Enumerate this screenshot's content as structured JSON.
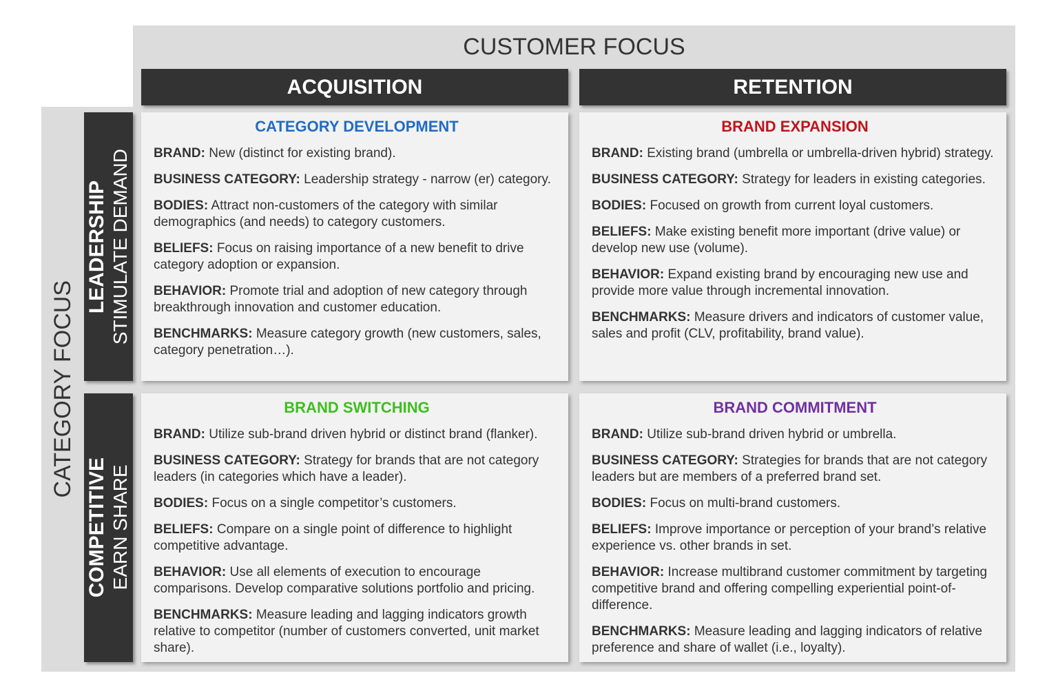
{
  "header": {
    "title": "CUSTOMER FOCUS"
  },
  "columns": [
    "ACQUISITION",
    "RETENTION"
  ],
  "side": {
    "title": "CATEGORY FOCUS"
  },
  "rows": [
    {
      "title": "LEADERSHIP",
      "subtitle": "STIMULATE DEMAND"
    },
    {
      "title": "COMPETITIVE",
      "subtitle": "EARN SHARE"
    }
  ],
  "cells": [
    [
      {
        "title": "CATEGORY DEVELOPMENT",
        "color": "#1f6cc4",
        "items": [
          {
            "label": "BRAND:",
            "text": "New (distinct for existing brand)."
          },
          {
            "label": "BUSINESS CATEGORY:",
            "text": "Leadership strategy - narrow (er) category."
          },
          {
            "label": "BODIES:",
            "text": "Attract non-customers of the category with similar demographics (and needs) to category customers."
          },
          {
            "label": "BELIEFS:",
            "text": "Focus on raising importance of a new benefit to drive category adoption or expansion."
          },
          {
            "label": "BEHAVIOR:",
            "text": "Promote trial and adoption of new category through breakthrough innovation and customer education."
          },
          {
            "label": "BENCHMARKS:",
            "text": "Measure category growth (new customers, sales, category penetration…)."
          }
        ]
      },
      {
        "title": "BRAND EXPANSION",
        "color": "#c0141c",
        "items": [
          {
            "label": "BRAND:",
            "text": "Existing brand (umbrella or umbrella-driven hybrid) strategy."
          },
          {
            "label": "BUSINESS CATEGORY:",
            "text": "Strategy for leaders in existing categories."
          },
          {
            "label": "BODIES:",
            "text": "Focused on growth from current loyal customers."
          },
          {
            "label": "BELIEFS:",
            "text": "Make existing benefit more important (drive value) or develop new use (volume)."
          },
          {
            "label": "BEHAVIOR:",
            "text": "Expand existing brand by encouraging new use and provide more value through incremental innovation."
          },
          {
            "label": "BENCHMARKS:",
            "text": "Measure drivers and indicators of customer value, sales and profit (CLV, profitability, brand value)."
          }
        ]
      }
    ],
    [
      {
        "title": "BRAND SWITCHING",
        "color": "#3cbf1e",
        "items": [
          {
            "label": "BRAND:",
            "text": "Utilize sub-brand driven hybrid or distinct brand (flanker)."
          },
          {
            "label": "BUSINESS CATEGORY:",
            "text": "Strategy for brands that are not category leaders (in categories which have a leader)."
          },
          {
            "label": "BODIES:",
            "text": "Focus on a single competitor’s customers."
          },
          {
            "label": "BELIEFS:",
            "text": "Compare on a single point of difference to highlight competitive advantage."
          },
          {
            "label": "BEHAVIOR:",
            "text": "Use all elements of execution to encourage comparisons. Develop comparative solutions portfolio and pricing."
          },
          {
            "label": "BENCHMARKS:",
            "text": "Measure leading and lagging indicators growth relative to competitor (number of customers converted, unit market share)."
          }
        ]
      },
      {
        "title": "BRAND COMMITMENT",
        "color": "#7030a0",
        "items": [
          {
            "label": "BRAND:",
            "text": "Utilize sub-brand driven hybrid or umbrella."
          },
          {
            "label": "BUSINESS CATEGORY:",
            "text": "Strategies for brands that are not category leaders but are members of a preferred brand set."
          },
          {
            "label": "BODIES:",
            "text": "Focus on multi-brand customers."
          },
          {
            "label": "BELIEFS:",
            "text": "Improve importance or perception of your brand’s relative experience vs. other brands in set."
          },
          {
            "label": "BEHAVIOR:",
            "text": "Increase multibrand customer commitment by targeting competitive brand and offering compelling experiential point-of-difference."
          },
          {
            "label": "BENCHMARKS:",
            "text": "Measure leading and lagging indicators of relative preference and share of wallet (i.e., loyalty)."
          }
        ]
      }
    ]
  ]
}
